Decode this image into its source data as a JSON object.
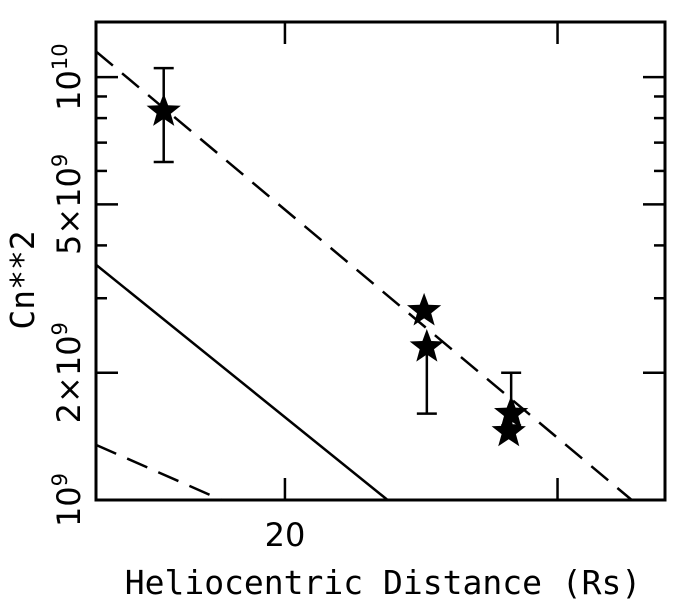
{
  "chart_data": {
    "type": "scatter",
    "xlabel": "Heliocentric Distance (Rs)",
    "ylabel": "Cn**2",
    "x_scale": "log",
    "y_scale": "log",
    "xlim": [
      15.1,
      35.2
    ],
    "ylim": [
      1000000000.0,
      13500000000.0
    ],
    "grid": false,
    "x_ticks": [
      {
        "value": 20,
        "label": "20"
      }
    ],
    "y_ticks": [
      {
        "value": 1000000000.0,
        "mantissa": "",
        "base": "10",
        "exp": "9"
      },
      {
        "value": 2000000000.0,
        "mantissa": "2×",
        "base": "10",
        "exp": "9"
      },
      {
        "value": 5000000000.0,
        "mantissa": "5×",
        "base": "10",
        "exp": "9"
      },
      {
        "value": 10000000000.0,
        "mantissa": "",
        "base": "10",
        "exp": "10"
      }
    ],
    "series": [
      {
        "marker": "star",
        "points": [
          {
            "x": 16.7,
            "y": 8300000000.0,
            "yerr_low": 6300000000.0,
            "yerr_high": 10500000000.0
          },
          {
            "x": 24.6,
            "y": 2800000000.0,
            "yerr_low": null,
            "yerr_high": null
          },
          {
            "x": 24.7,
            "y": 2300000000.0,
            "yerr_low": 1600000000.0,
            "yerr_high": null
          },
          {
            "x": 28.0,
            "y": 1600000000.0,
            "yerr_low": 1500000000.0,
            "yerr_high": 2000000000.0
          },
          {
            "x": 27.9,
            "y": 1450000000.0,
            "yerr_low": null,
            "yerr_high": null
          }
        ]
      }
    ],
    "lines": [
      {
        "style": "dashed",
        "points": [
          [
            15.1,
            11500000000.0
          ],
          [
            33.5,
            1000000000.0
          ]
        ]
      },
      {
        "style": "solid",
        "points": [
          [
            15.1,
            3600000000.0
          ],
          [
            23.3,
            1000000000.0
          ]
        ]
      },
      {
        "style": "dashed",
        "points": [
          [
            15.1,
            1350000000.0
          ],
          [
            18.2,
            1000000000.0
          ]
        ]
      }
    ]
  }
}
